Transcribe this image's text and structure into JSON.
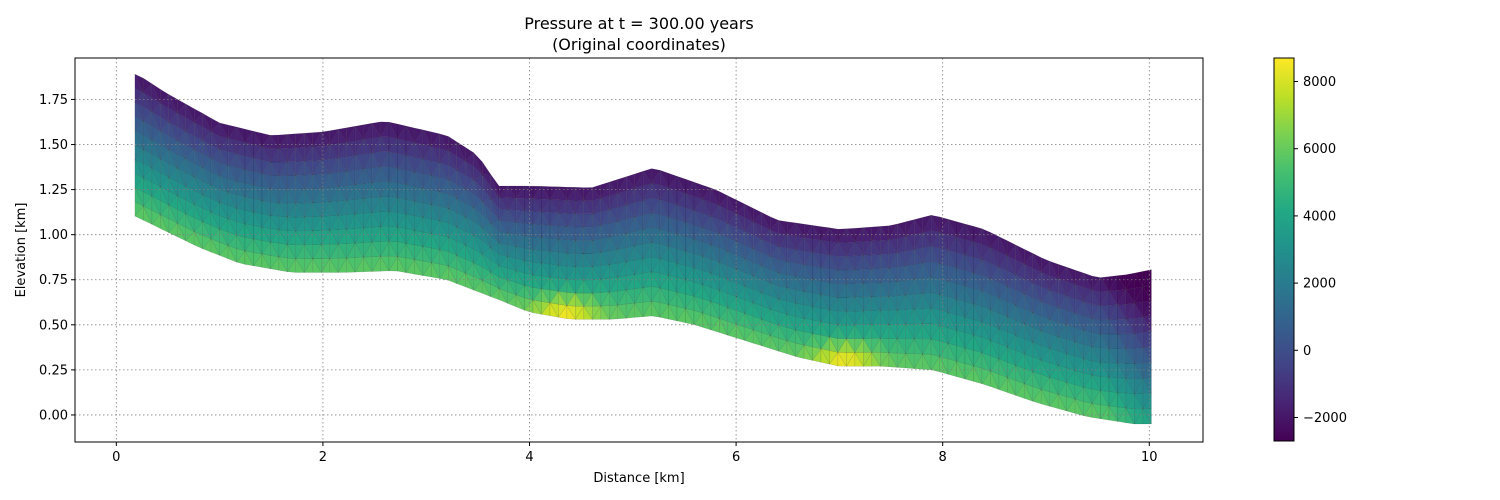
{
  "chart_data": {
    "type": "heatmap",
    "title": "Pressure at t = 300.00 years",
    "subtitle": "(Original coordinates)",
    "xlabel": "Distance [km]",
    "ylabel": "Elevation [km]",
    "xlim": [
      -0.4,
      10.52
    ],
    "ylim": [
      -0.15,
      1.98
    ],
    "x_ticks": [
      0,
      2,
      4,
      6,
      8,
      10
    ],
    "x_tick_labels": [
      "0",
      "2",
      "4",
      "6",
      "8",
      "10"
    ],
    "y_ticks": [
      0.0,
      0.25,
      0.5,
      0.75,
      1.0,
      1.25,
      1.5,
      1.75
    ],
    "y_tick_labels": [
      "0.00",
      "0.25",
      "0.50",
      "0.75",
      "1.00",
      "1.25",
      "1.50",
      "1.75"
    ],
    "grid": true,
    "colormap": "viridis",
    "colorbar": {
      "range": [
        -2700,
        8700
      ],
      "ticks": [
        -2000,
        0,
        2000,
        4000,
        6000,
        8000
      ],
      "tick_labels": [
        "−2000",
        "0",
        "2000",
        "4000",
        "6000",
        "8000"
      ]
    },
    "domain_top_boundary": [
      [
        0.2,
        1.89
      ],
      [
        0.5,
        1.78
      ],
      [
        1.0,
        1.62
      ],
      [
        1.5,
        1.55
      ],
      [
        2.0,
        1.57
      ],
      [
        2.6,
        1.63
      ],
      [
        3.2,
        1.55
      ],
      [
        3.5,
        1.44
      ],
      [
        3.7,
        1.27
      ],
      [
        4.0,
        1.27
      ],
      [
        4.6,
        1.26
      ],
      [
        5.2,
        1.37
      ],
      [
        5.8,
        1.25
      ],
      [
        6.4,
        1.08
      ],
      [
        7.0,
        1.03
      ],
      [
        7.5,
        1.05
      ],
      [
        7.9,
        1.11
      ],
      [
        8.4,
        1.03
      ],
      [
        9.0,
        0.86
      ],
      [
        9.5,
        0.76
      ],
      [
        9.8,
        0.78
      ],
      [
        10.05,
        0.81
      ]
    ],
    "domain_bottom_boundary": [
      [
        0.8,
        0.93
      ],
      [
        1.2,
        0.84
      ],
      [
        1.7,
        0.79
      ],
      [
        2.2,
        0.79
      ],
      [
        2.7,
        0.8
      ],
      [
        3.2,
        0.75
      ],
      [
        3.7,
        0.64
      ],
      [
        4.0,
        0.57
      ],
      [
        4.4,
        0.53
      ],
      [
        4.8,
        0.53
      ],
      [
        5.2,
        0.55
      ],
      [
        5.6,
        0.5
      ],
      [
        6.1,
        0.41
      ],
      [
        6.6,
        0.32
      ],
      [
        7.0,
        0.27
      ],
      [
        7.4,
        0.27
      ],
      [
        7.9,
        0.25
      ],
      [
        8.4,
        0.17
      ],
      [
        8.9,
        0.07
      ],
      [
        9.4,
        -0.01
      ],
      [
        9.85,
        -0.05
      ]
    ],
    "pressure_hotspots": [
      {
        "x": 4.35,
        "y": 0.57,
        "value": 8700
      },
      {
        "x": 7.05,
        "y": 0.31,
        "value": 8700
      }
    ]
  }
}
